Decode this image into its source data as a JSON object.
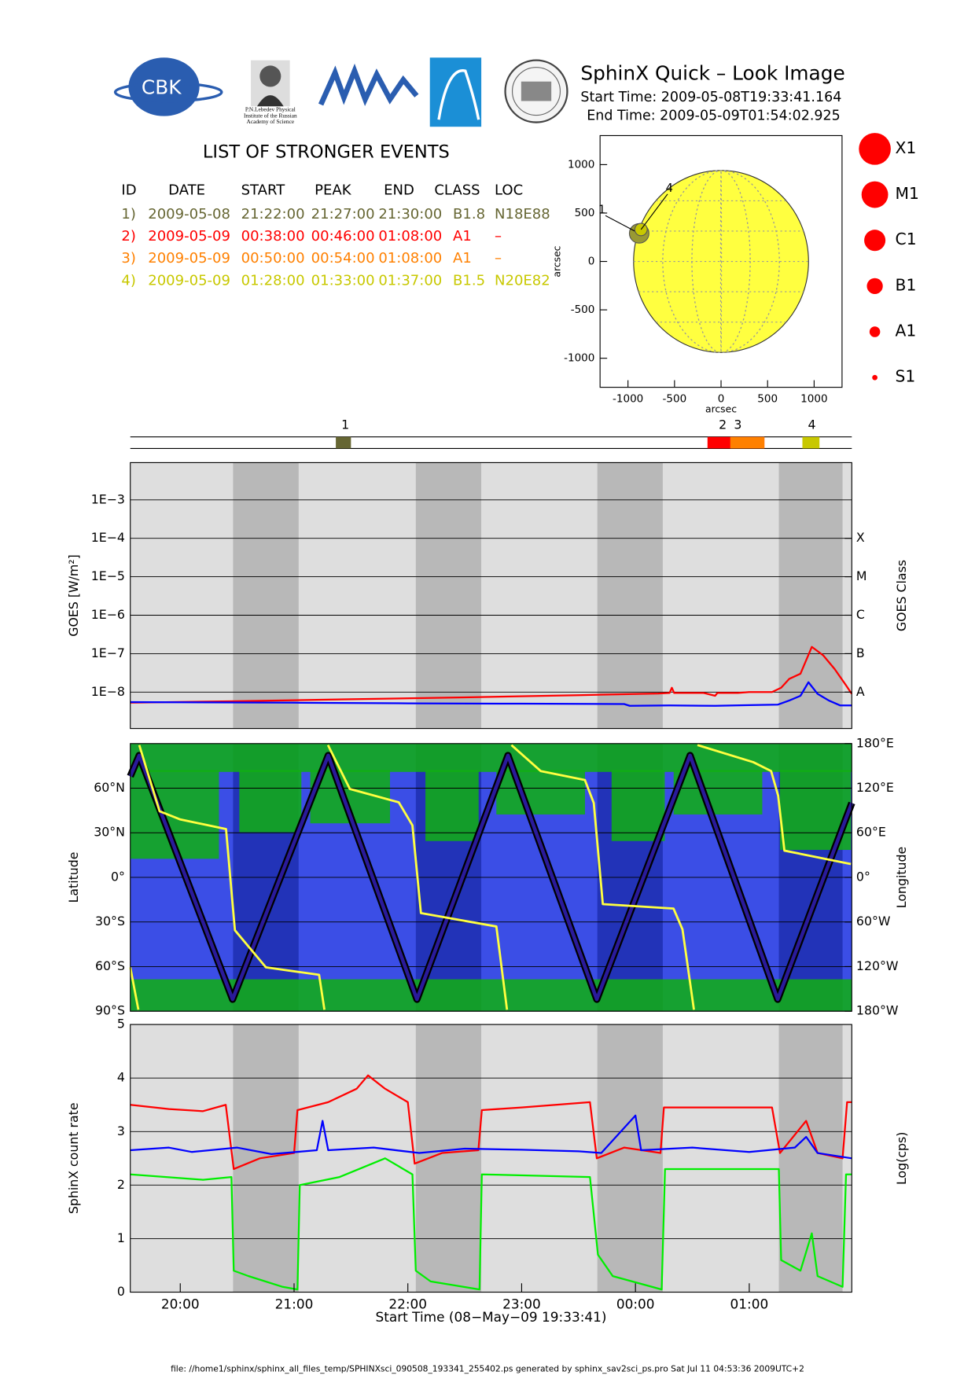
{
  "header": {
    "title": "SphinX Quick – Look Image",
    "start_time": "Start Time: 2009-05-08T19:33:41.164",
    "end_time": "End Time: 2009-05-09T01:54:02.925",
    "logo_texts": [
      "CBK",
      "P.N.Lebedev Physical",
      "Institute of the Russian",
      "Academy of Science"
    ]
  },
  "events_table": {
    "title": "LIST OF STRONGER EVENTS",
    "columns": [
      "ID",
      "DATE",
      "START",
      "PEAK",
      "END",
      "CLASS",
      "LOC"
    ],
    "rows": [
      [
        "1)",
        "2009-05-08",
        "21:22:00",
        "21:27:00",
        "21:30:00",
        "B1.8",
        "N18E88"
      ],
      [
        "2)",
        "2009-05-09",
        "00:38:00",
        "00:46:00",
        "01:08:00",
        "A1",
        "–"
      ],
      [
        "3)",
        "2009-05-09",
        "00:50:00",
        "00:54:00",
        "01:08:00",
        "A1",
        "–"
      ],
      [
        "4)",
        "2009-05-09",
        "01:28:00",
        "01:33:00",
        "01:37:00",
        "B1.5",
        "N20E82"
      ]
    ],
    "colors": [
      "#666633",
      "#ff0000",
      "#ff8000",
      "#c8c800"
    ]
  },
  "size_legend": [
    "X1",
    "M1",
    "C1",
    "B1",
    "A1",
    "S1"
  ],
  "footer": "file: //home1/sphinx/sphinx_all_files_temp/SPHINXsci_090508_193341_255402.ps generated by sphinx_sav2sci_ps.pro Sat Jul 11 04:53:36 2009UTC+2",
  "chart_data": [
    {
      "type": "scatter",
      "xlabel": "arcsec",
      "ylabel": "arcsec",
      "xlim": [
        -1300,
        1300
      ],
      "ylim": [
        -1300,
        1300
      ],
      "xticks": [
        -1000,
        -500,
        0,
        500,
        1000
      ],
      "yticks": [
        -1000,
        -500,
        0,
        500,
        1000
      ],
      "disk_radius": 940,
      "disk_color": "#ffff40",
      "x": [
        -880,
        -860
      ],
      "values": [
        290,
        330
      ],
      "point_labels": [
        "1",
        "4"
      ],
      "point_colors": [
        "#999933",
        "#c8c800"
      ]
    },
    {
      "type": "timeline",
      "xlim": [
        19.561,
        25.901
      ],
      "events": [
        {
          "label": "1",
          "start": 21.367,
          "peak": 21.45,
          "end": 21.5,
          "color": "#666633"
        },
        {
          "label": "2",
          "start": 24.633,
          "peak": 24.767,
          "end": 25.133,
          "color": "#ff0000"
        },
        {
          "label": "3",
          "start": 24.833,
          "peak": 24.9,
          "end": 25.133,
          "color": "#ff8000"
        },
        {
          "label": "4",
          "start": 25.467,
          "peak": 25.55,
          "end": 25.617,
          "color": "#c8c800"
        }
      ]
    },
    {
      "type": "line",
      "ylabel": "GOES [W/m²]",
      "y2label": "GOES Class",
      "ylog": true,
      "grid": true,
      "xlim": [
        19.561,
        25.901
      ],
      "ylim": [
        1.13e-09,
        0.0093
      ],
      "y2lim": [
        1.13e-09,
        0.0093
      ],
      "yticks": [
        {
          "value": 1e-08,
          "label": "1E−8"
        },
        {
          "value": 1e-07,
          "label": "1E−7"
        },
        {
          "value": 1e-06,
          "label": "1E−6"
        },
        {
          "value": 1e-05,
          "label": "1E−5"
        },
        {
          "value": 0.0001,
          "label": "1E−4"
        },
        {
          "value": 0.001,
          "label": "1E−3"
        }
      ],
      "y2ticks": [
        {
          "value": 1e-08,
          "label": "A"
        },
        {
          "value": 1e-07,
          "label": "B"
        },
        {
          "value": 1e-06,
          "label": "C"
        },
        {
          "value": 1e-05,
          "label": "M"
        },
        {
          "value": 0.0001,
          "label": "X"
        }
      ],
      "background": "#dedede",
      "shade_color": "#b8b8b8",
      "shaded_intervals": [
        [
          20.464,
          21.04
        ],
        [
          22.07,
          22.645
        ],
        [
          23.665,
          24.24
        ],
        [
          25.26,
          25.82
        ]
      ],
      "series": [
        {
          "color": "#ff0000",
          "x": [
            19.561,
            20.5,
            21.5,
            22.5,
            23.5,
            24.2,
            24.3,
            24.32,
            24.34,
            24.6,
            24.7,
            24.72,
            24.9,
            25.0,
            25.2,
            25.28,
            25.35,
            25.45,
            25.55,
            25.65,
            25.75,
            25.85,
            25.9
          ],
          "values": [
            5.3e-09,
            5.8e-09,
            6.5e-09,
            7.3e-09,
            8.3e-09,
            9.2e-09,
            9.5e-09,
            1.3e-08,
            9.5e-09,
            9.5e-09,
            8e-09,
            9.5e-09,
            9.5e-09,
            1e-08,
            1e-08,
            1.3e-08,
            2.2e-08,
            3e-08,
            1.5e-07,
            9e-08,
            4e-08,
            1.5e-08,
            9e-09
          ]
        },
        {
          "color": "#0000ff",
          "x": [
            19.561,
            21.0,
            22.0,
            23.0,
            23.9,
            23.95,
            24.3,
            24.7,
            25.0,
            25.25,
            25.35,
            25.45,
            25.52,
            25.6,
            25.7,
            25.8,
            25.9
          ],
          "values": [
            5.5e-09,
            5.3e-09,
            5.1e-09,
            5e-09,
            4.9e-09,
            4.4e-09,
            4.5e-09,
            4.4e-09,
            4.6e-09,
            4.7e-09,
            6e-09,
            8e-09,
            1.8e-08,
            9e-09,
            6e-09,
            4.5e-09,
            4.5e-09
          ]
        }
      ]
    },
    {
      "type": "line",
      "ylabel": "Latitude",
      "y2label": "Longitude",
      "grid": true,
      "xlim": [
        19.561,
        25.901
      ],
      "ylim": [
        -90,
        90
      ],
      "y2lim": [
        -180,
        180
      ],
      "yticks": [
        {
          "value": 60,
          "label": "60°N"
        },
        {
          "value": 30,
          "label": "30°N"
        },
        {
          "value": 0,
          "label": "0°"
        },
        {
          "value": -30,
          "label": "30°S"
        },
        {
          "value": -60,
          "label": "60°S"
        },
        {
          "value": -90,
          "label": "90°S"
        }
      ],
      "y2ticks": [
        {
          "value": 180,
          "label": "180°E"
        },
        {
          "value": 120,
          "label": "120°E"
        },
        {
          "value": 60,
          "label": "60°E"
        },
        {
          "value": 0,
          "label": "0°"
        },
        {
          "value": -60,
          "label": "60°W"
        },
        {
          "value": -120,
          "label": "120°W"
        },
        {
          "value": -180,
          "label": "180°W"
        }
      ],
      "background": "#3b4ee6",
      "shade_color": "#2233b8",
      "shaded_intervals": [
        [
          20.464,
          21.04
        ],
        [
          22.07,
          22.645
        ],
        [
          23.665,
          24.24
        ],
        [
          25.26,
          25.82
        ]
      ],
      "series": [
        {
          "color": "#000000",
          "x": [
            19.561,
            19.639,
            20.46,
            21.3,
            22.08,
            22.88,
            23.66,
            24.48,
            25.25,
            25.901
          ],
          "values": [
            68,
            82,
            -82,
            82,
            -82,
            82,
            -82,
            82,
            -82,
            50
          ]
        },
        {
          "color": "#ffff40",
          "axis": "y2",
          "x": [
            19.561,
            19.632,
            19.639,
            19.64,
            19.818,
            20.0,
            20.402,
            20.48,
            20.753,
            21.22,
            21.267,
            21.28,
            21.298,
            21.49,
            21.92,
            22.04,
            22.115,
            22.778,
            22.871,
            22.89,
            22.91,
            23.167,
            23.556,
            23.634,
            23.713,
            24.335,
            24.413,
            24.514,
            24.53,
            24.545,
            25.036,
            25.192,
            25.254,
            25.309,
            25.893
          ],
          "values": [
            -121,
            -178,
            null,
            178,
            89,
            78,
            65,
            -71,
            -121,
            -131,
            -178,
            null,
            178,
            119,
            101,
            70,
            -48,
            -66,
            -178,
            null,
            178,
            143,
            131,
            100,
            -36,
            -42,
            -70,
            -178,
            null,
            178,
            155,
            143,
            110,
            36,
            18
          ]
        }
      ]
    },
    {
      "type": "line",
      "ylabel": "SphinX count rate",
      "y2label": "Log(cps)",
      "xlabel": "Start Time (08−May−09 19:33:41)",
      "grid": true,
      "xlim": [
        19.561,
        25.901
      ],
      "ylim": [
        0,
        5
      ],
      "yticks": [
        0,
        1,
        2,
        3,
        4,
        5
      ],
      "xticks": [
        {
          "value": 20,
          "label": "20:00"
        },
        {
          "value": 21,
          "label": "21:00"
        },
        {
          "value": 22,
          "label": "22:00"
        },
        {
          "value": 23,
          "label": "23:00"
        },
        {
          "value": 24,
          "label": "00:00"
        },
        {
          "value": 25,
          "label": "01:00"
        }
      ],
      "background": "#dedede",
      "shade_color": "#b8b8b8",
      "shaded_intervals": [
        [
          20.464,
          21.04
        ],
        [
          22.07,
          22.645
        ],
        [
          23.665,
          24.24
        ],
        [
          25.26,
          25.82
        ]
      ],
      "series": [
        {
          "color": "#ff0000",
          "x": [
            19.561,
            19.9,
            20.2,
            20.4,
            20.47,
            20.7,
            21.0,
            21.03,
            21.3,
            21.55,
            21.65,
            21.8,
            22.0,
            22.06,
            22.3,
            22.62,
            22.65,
            23.0,
            23.6,
            23.66,
            23.9,
            24.22,
            24.25,
            24.6,
            25.2,
            25.27,
            25.5,
            25.6,
            25.82,
            25.86,
            25.901
          ],
          "values": [
            3.5,
            3.42,
            3.38,
            3.5,
            2.3,
            2.5,
            2.6,
            3.4,
            3.55,
            3.8,
            4.05,
            3.8,
            3.55,
            2.4,
            2.6,
            2.65,
            3.4,
            3.45,
            3.55,
            2.5,
            2.7,
            2.6,
            3.45,
            3.45,
            3.45,
            2.6,
            3.2,
            2.6,
            2.5,
            3.55,
            3.55
          ]
        },
        {
          "color": "#00ee00",
          "x": [
            19.561,
            20.2,
            20.45,
            20.47,
            20.6,
            20.9,
            21.03,
            21.05,
            21.4,
            21.8,
            22.04,
            22.07,
            22.2,
            22.63,
            22.65,
            23.6,
            23.67,
            23.8,
            24.23,
            24.26,
            25.26,
            25.28,
            25.45,
            25.55,
            25.6,
            25.82,
            25.85,
            25.901
          ],
          "values": [
            2.2,
            2.1,
            2.15,
            0.4,
            0.3,
            0.1,
            0.05,
            2.0,
            2.15,
            2.5,
            2.2,
            0.4,
            0.2,
            0.05,
            2.2,
            2.15,
            0.7,
            0.3,
            0.05,
            2.3,
            2.3,
            0.6,
            0.4,
            1.1,
            0.3,
            0.1,
            2.2,
            2.2
          ]
        },
        {
          "color": "#0000ff",
          "x": [
            19.561,
            19.9,
            20.1,
            20.5,
            20.8,
            21.2,
            21.25,
            21.3,
            21.7,
            22.1,
            22.5,
            23.0,
            23.5,
            23.7,
            24.0,
            24.05,
            24.5,
            25.0,
            25.4,
            25.5,
            25.6,
            25.901
          ],
          "values": [
            2.65,
            2.7,
            2.62,
            2.7,
            2.58,
            2.65,
            3.2,
            2.65,
            2.7,
            2.6,
            2.68,
            2.66,
            2.63,
            2.6,
            3.3,
            2.65,
            2.7,
            2.62,
            2.7,
            2.9,
            2.6,
            2.5
          ]
        }
      ]
    }
  ]
}
